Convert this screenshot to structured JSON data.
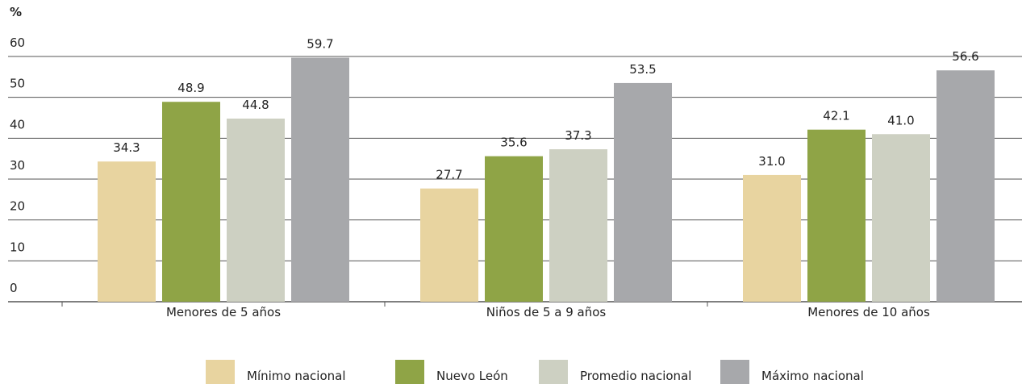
{
  "chart_data": {
    "type": "bar",
    "y_label": "%",
    "categories": [
      "Menores de 5 años",
      "Niños de 5 a 9 años",
      "Menores de 10 años"
    ],
    "series": [
      {
        "name": "Mínimo nacional",
        "color": "#e8d4a0",
        "values": [
          34.3,
          27.7,
          31
        ],
        "value_labels": [
          "34.3",
          "27.7",
          "31.0"
        ]
      },
      {
        "name": "Nuevo León",
        "color": "#8fa446",
        "values": [
          48.9,
          35.6,
          42.1
        ],
        "value_labels": [
          "48.9",
          "35.6",
          "42.1"
        ]
      },
      {
        "name": "Promedio nacional",
        "color": "#cdd0c2",
        "values": [
          44.8,
          37.3,
          41
        ],
        "value_labels": [
          "44.8",
          "37.3",
          "41.0"
        ]
      },
      {
        "name": "Máximo nacional",
        "color": "#a7a8ab",
        "values": [
          59.7,
          53.5,
          56.6
        ],
        "value_labels": [
          "59.7",
          "53.5",
          "56.6"
        ]
      }
    ],
    "ylim": [
      0,
      60
    ],
    "yticks": [
      0,
      10,
      20,
      30,
      40,
      50,
      60
    ],
    "grid": true,
    "legend": "bottom"
  }
}
